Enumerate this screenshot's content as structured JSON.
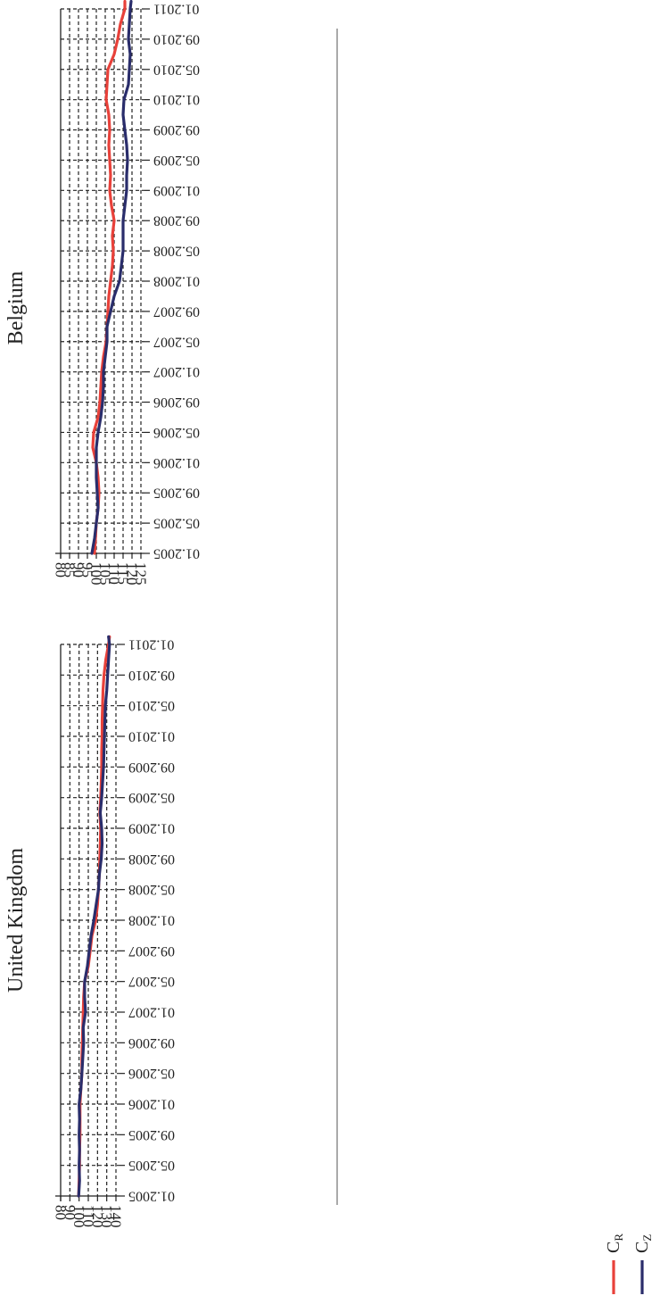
{
  "colors": {
    "c_r": "#e8413a",
    "c_z": "#2a2d6b",
    "grid": "#222222",
    "axis": "#222222"
  },
  "legend": [
    {
      "symbol": "C",
      "subscript": "R",
      "color_key": "c_r"
    },
    {
      "symbol": "C",
      "subscript": "Z",
      "color_key": "c_z"
    }
  ],
  "chart_data": [
    {
      "type": "line",
      "title": "United Kingdom",
      "xlabel": "",
      "ylabel": "",
      "ylim": [
        80,
        140
      ],
      "yticks": [
        80,
        90,
        100,
        110,
        120,
        130,
        140
      ],
      "x_ticks": [
        "01.2005",
        "05.2005",
        "09.2005",
        "01.2006",
        "05.2006",
        "09.2006",
        "01.2007",
        "05.2007",
        "09.2007",
        "01.2008",
        "05.2008",
        "09.2008",
        "01.2009",
        "05.2009",
        "09.2009",
        "01.2010",
        "05.2010",
        "09.2010",
        "01.2011"
      ],
      "grid": true,
      "series": [
        {
          "name": "C R",
          "color_key": "c_r",
          "x": [
            0,
            2,
            4,
            6,
            8,
            10,
            12,
            14,
            16,
            18,
            20,
            22,
            24,
            26,
            28,
            30,
            32,
            34,
            36,
            38,
            40,
            42,
            44,
            46,
            48,
            50,
            52,
            54,
            56,
            58,
            60,
            62,
            64,
            66,
            68,
            70,
            72,
            73
          ],
          "values": [
            99.5,
            100,
            100.5,
            100.5,
            101,
            101,
            101,
            102,
            103,
            103,
            103.5,
            104,
            104.5,
            105,
            106,
            110,
            112,
            114,
            118,
            120,
            121,
            122,
            122.5,
            123,
            123.5,
            122.5,
            123.5,
            124,
            124.5,
            124.5,
            125,
            125,
            125.5,
            126,
            127,
            129,
            132,
            133
          ]
        },
        {
          "name": "C Z",
          "color_key": "c_z",
          "x": [
            0,
            2,
            4,
            6,
            8,
            10,
            12,
            14,
            16,
            18,
            20,
            22,
            24,
            26,
            28,
            30,
            32,
            34,
            36,
            38,
            40,
            42,
            44,
            46,
            48,
            50,
            52,
            54,
            56,
            58,
            60,
            62,
            64,
            66,
            68,
            70,
            72,
            73
          ],
          "values": [
            99.5,
            100.5,
            100,
            100.5,
            100,
            100.5,
            100,
            102,
            103,
            104,
            105,
            104.5,
            107,
            106,
            106,
            109,
            111,
            113,
            116,
            118.5,
            121,
            122,
            124,
            125,
            124.5,
            123,
            124.5,
            125.5,
            126.5,
            127,
            127.5,
            128,
            128.5,
            130,
            131,
            132,
            133,
            132
          ]
        }
      ]
    },
    {
      "type": "line",
      "title": "Belgium",
      "xlabel": "",
      "ylabel": "",
      "ylim": [
        80,
        125
      ],
      "yticks": [
        80,
        85,
        90,
        95,
        100,
        105,
        110,
        115,
        120,
        125
      ],
      "x_ticks": [
        "01.2005",
        "05.2005",
        "09.2005",
        "01.2006",
        "05.2006",
        "09.2006",
        "01.2007",
        "05.2007",
        "09.2007",
        "01.2008",
        "05.2008",
        "09.2008",
        "01.2009",
        "05.2009",
        "09.2009",
        "01.2010",
        "05.2010",
        "09.2010",
        "01.2011"
      ],
      "grid": true,
      "series": [
        {
          "name": "C R",
          "color_key": "c_r",
          "x": [
            0,
            2,
            4,
            6,
            8,
            10,
            12,
            14,
            16,
            18,
            20,
            22,
            24,
            26,
            28,
            30,
            32,
            34,
            36,
            38,
            40,
            42,
            44,
            46,
            48,
            50,
            52,
            54,
            56,
            58,
            60,
            62,
            64,
            66,
            68,
            70,
            72,
            73
          ],
          "values": [
            99,
            99.5,
            100,
            101,
            101.5,
            101,
            100,
            98,
            98.5,
            101,
            102,
            102.5,
            103,
            104,
            105.5,
            106,
            106.5,
            107,
            108,
            109,
            109.5,
            109,
            110,
            108.5,
            107.5,
            108,
            107.5,
            107,
            107.5,
            107,
            105.5,
            106,
            106.5,
            110,
            112,
            113.5,
            116,
            116
          ]
        },
        {
          "name": "C Z",
          "color_key": "c_z",
          "x": [
            0,
            2,
            4,
            6,
            8,
            10,
            12,
            14,
            16,
            18,
            20,
            22,
            24,
            26,
            28,
            30,
            32,
            34,
            36,
            38,
            40,
            42,
            44,
            46,
            48,
            50,
            52,
            54,
            56,
            58,
            60,
            62,
            64,
            66,
            68,
            70,
            72,
            73
          ],
          "values": [
            97.5,
            99,
            100,
            101,
            100.5,
            100,
            100,
            100,
            101,
            102.5,
            103.5,
            104,
            104,
            105,
            106,
            106,
            108,
            110,
            113,
            114,
            115,
            115,
            115,
            116,
            117,
            117,
            117.5,
            117,
            116,
            115,
            115.5,
            118,
            118.5,
            119,
            118,
            118.5,
            119,
            119.5
          ]
        }
      ]
    }
  ]
}
